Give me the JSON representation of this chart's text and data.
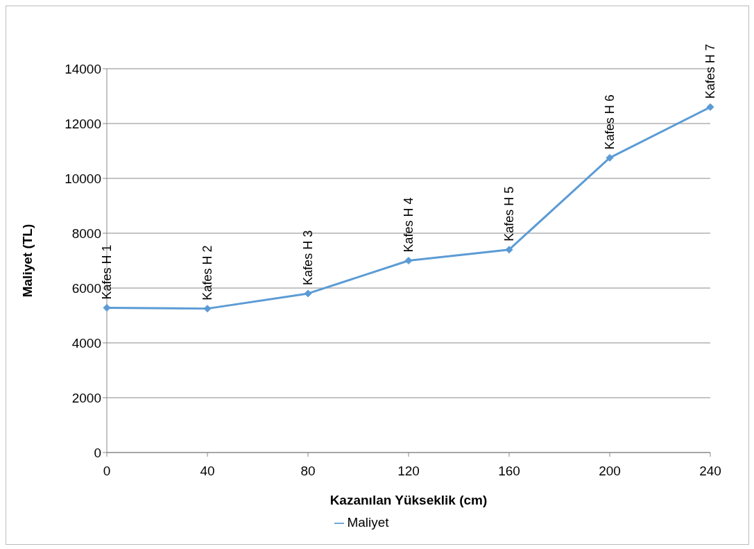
{
  "chart_data": {
    "type": "line",
    "xlabel": "Kazanılan Yükseklik (cm)",
    "ylabel": "Maliyet (TL)",
    "categories": [
      "0",
      "40",
      "80",
      "120",
      "160",
      "200",
      "240"
    ],
    "series": [
      {
        "name": "Maliyet",
        "color": "#5b9bd5",
        "values": [
          5280,
          5250,
          5800,
          7000,
          7400,
          10750,
          12600
        ]
      }
    ],
    "ylim": [
      0,
      14000
    ],
    "yticks": [
      0,
      2000,
      4000,
      6000,
      8000,
      10000,
      12000,
      14000
    ],
    "grid": "y",
    "legend": "bottom",
    "marker": "diamond",
    "line_style": "solid",
    "annotations": [
      {
        "text": "Kafes H 1",
        "x": "0",
        "y": 5280
      },
      {
        "text": "Kafes H 2",
        "x": "40",
        "y": 5250
      },
      {
        "text": "Kafes H 3",
        "x": "80",
        "y": 5800
      },
      {
        "text": "Kafes H 4",
        "x": "120",
        "y": 7000
      },
      {
        "text": "Kafes H 5",
        "x": "160",
        "y": 7400
      },
      {
        "text": "Kafes H 6",
        "x": "200",
        "y": 10750
      },
      {
        "text": "Kafes H 7",
        "x": "240",
        "y": 12600
      }
    ]
  }
}
